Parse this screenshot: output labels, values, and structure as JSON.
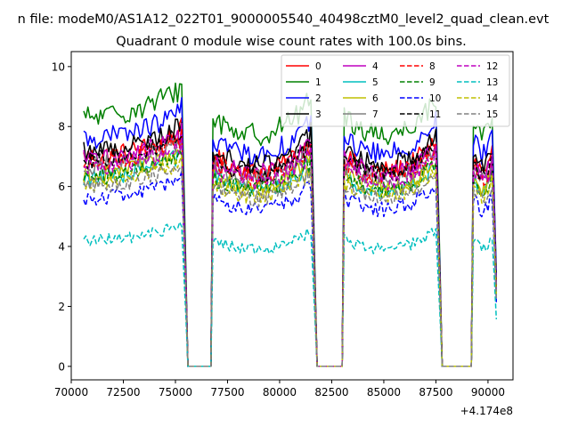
{
  "chart_data": {
    "type": "line",
    "suptitle": "n file: modeM0/AS1A12_022T01_9000005540_40498cztM0_level2_quad_clean.evt",
    "title": "Quadrant 0 module wise count rates with 100.0s bins.",
    "xlabel": "",
    "ylabel": "",
    "x_offset_text": "+4.174e8",
    "xlim": [
      70000,
      91200
    ],
    "ylim": [
      -0.45,
      10.5
    ],
    "x_ticks": [
      70000,
      72500,
      75000,
      77500,
      80000,
      82500,
      85000,
      87500,
      90000
    ],
    "x_tick_labels": [
      "70000",
      "72500",
      "75000",
      "77500",
      "80000",
      "82500",
      "85000",
      "87500",
      "90000"
    ],
    "y_ticks": [
      0,
      2,
      4,
      6,
      8,
      10
    ],
    "y_tick_labels": [
      "0",
      "2",
      "4",
      "6",
      "8",
      "10"
    ],
    "grid": false,
    "legend_position": "top-right",
    "legend_columns": 4,
    "segments": [
      [
        70600,
        75500
      ],
      [
        76800,
        81700
      ],
      [
        83100,
        87700
      ],
      [
        89300,
        90400
      ]
    ],
    "gaps": [
      [
        75500,
        76800
      ],
      [
        81700,
        83100
      ],
      [
        87700,
        89300
      ]
    ],
    "series": [
      {
        "name": "0",
        "color": "#ff0000",
        "dash": "solid",
        "base": 7.0
      },
      {
        "name": "1",
        "color": "#008000",
        "dash": "solid",
        "base": 8.3
      },
      {
        "name": "2",
        "color": "#0000ff",
        "dash": "solid",
        "base": 7.6
      },
      {
        "name": "3",
        "color": "#000000",
        "dash": "solid",
        "base": 7.2
      },
      {
        "name": "4",
        "color": "#bf00bf",
        "dash": "solid",
        "base": 6.9
      },
      {
        "name": "5",
        "color": "#00bfbf",
        "dash": "solid",
        "base": 6.3
      },
      {
        "name": "6",
        "color": "#bfbf00",
        "dash": "solid",
        "base": 6.4
      },
      {
        "name": "7",
        "color": "#808080",
        "dash": "solid",
        "base": 6.7
      },
      {
        "name": "8",
        "color": "#ff0000",
        "dash": "dashed",
        "base": 6.8
      },
      {
        "name": "9",
        "color": "#008000",
        "dash": "dashed",
        "base": 6.3
      },
      {
        "name": "10",
        "color": "#0000ff",
        "dash": "dashed",
        "base": 5.6
      },
      {
        "name": "11",
        "color": "#000000",
        "dash": "dashed",
        "base": 6.9
      },
      {
        "name": "12",
        "color": "#bf00bf",
        "dash": "dashed",
        "base": 6.6
      },
      {
        "name": "13",
        "color": "#00bfbf",
        "dash": "dashed",
        "base": 4.2
      },
      {
        "name": "14",
        "color": "#bfbf00",
        "dash": "dashed",
        "base": 6.1
      },
      {
        "name": "15",
        "color": "#808080",
        "dash": "dashed",
        "base": 6.0
      }
    ]
  }
}
